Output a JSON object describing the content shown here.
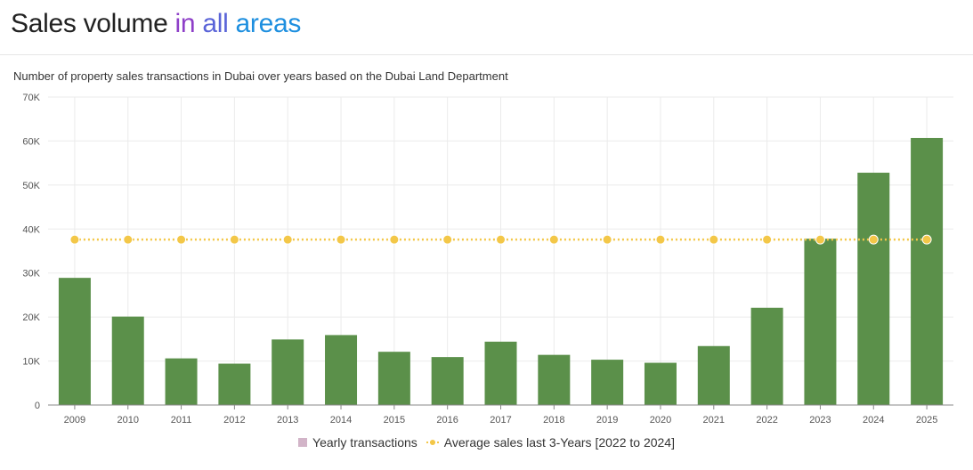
{
  "header": {
    "title_part1": "Sales volume",
    "title_part2": "in",
    "title_part3": "all",
    "title_part4": "areas"
  },
  "colors": {
    "bar": "#5b904a",
    "avg_line": "#f3c748",
    "legend_bar_swatch": "#d2b4c8",
    "grid": "#ebebeb"
  },
  "chart_data": {
    "type": "bar",
    "subtitle": "Number of property sales transactions in Dubai over years based on the Dubai Land Department",
    "categories": [
      "2009",
      "2010",
      "2011",
      "2012",
      "2013",
      "2014",
      "2015",
      "2016",
      "2017",
      "2018",
      "2019",
      "2020",
      "2021",
      "2022",
      "2023",
      "2024",
      "2025"
    ],
    "series": [
      {
        "name": "Yearly transactions",
        "type": "bar",
        "values": [
          28900,
          20100,
          10600,
          9400,
          14900,
          15900,
          12100,
          10900,
          14400,
          11400,
          10300,
          9600,
          13400,
          22100,
          37800,
          52800,
          60700
        ]
      },
      {
        "name": "Average sales last 3-Years [2022 to 2024]",
        "type": "line",
        "values": [
          37600,
          37600,
          37600,
          37600,
          37600,
          37600,
          37600,
          37600,
          37600,
          37600,
          37600,
          37600,
          37600,
          37600,
          37600,
          37600,
          37600
        ]
      }
    ],
    "ylim": [
      0,
      70000
    ],
    "yticks": [
      0,
      10000,
      20000,
      30000,
      40000,
      50000,
      60000,
      70000
    ],
    "ytick_labels": [
      "0",
      "10K",
      "20K",
      "30K",
      "40K",
      "50K",
      "60K",
      "70K"
    ],
    "legend_position": "bottom-center",
    "grid": true
  }
}
